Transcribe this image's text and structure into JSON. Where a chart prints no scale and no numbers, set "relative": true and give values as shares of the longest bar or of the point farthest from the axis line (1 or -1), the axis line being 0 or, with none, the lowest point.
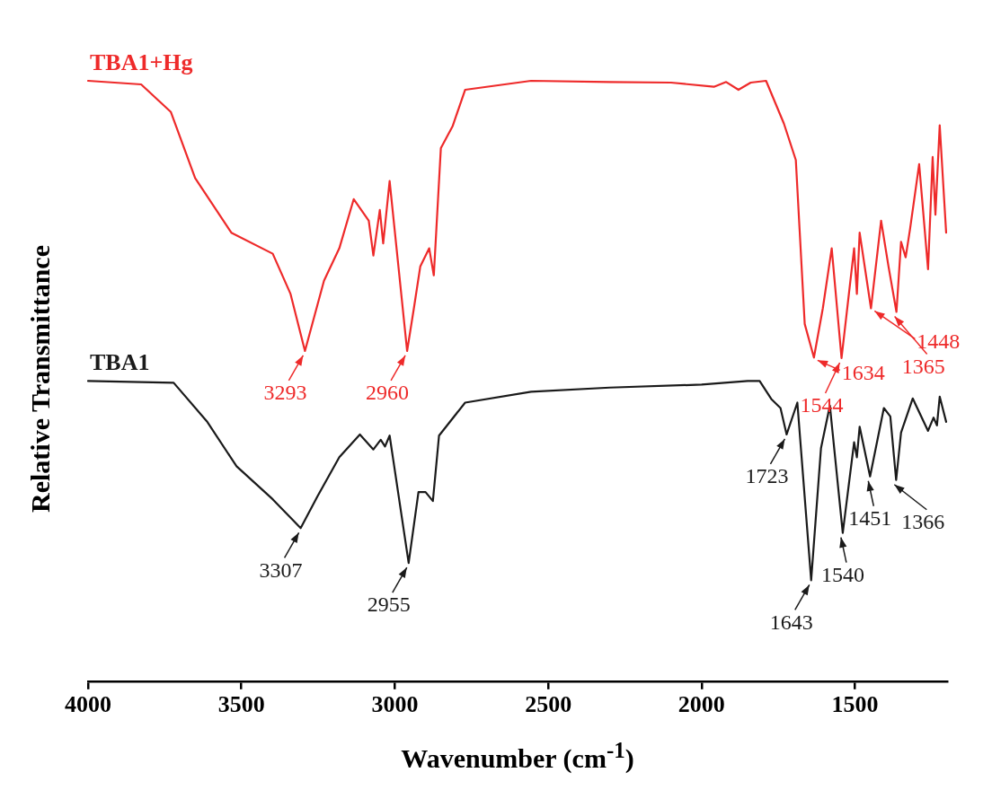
{
  "chart_data": {
    "type": "line",
    "relative": true,
    "xlabel": "Wavenumber (cm$^{-1}$)",
    "ylabel": "Relative Transmittance",
    "xlim": [
      4000,
      1200
    ],
    "xticks": [
      4000,
      3500,
      3000,
      2500,
      2000,
      1500
    ],
    "grid": false,
    "legend": false,
    "marker": "none",
    "line_style": "solid",
    "series": [
      {
        "name": "TBA1+Hg",
        "color": "#ee2a2a",
        "x": [
          4000,
          3827,
          3730,
          3651,
          3533,
          3398,
          3340,
          3293,
          3231,
          3181,
          3134,
          3085,
          3070,
          3049,
          3038,
          3017,
          2960,
          2938,
          2917,
          2888,
          2873,
          2850,
          2812,
          2771,
          2556,
          2300,
          2100,
          1960,
          1920,
          1880,
          1840,
          1790,
          1732,
          1693,
          1664,
          1634,
          1605,
          1576,
          1544,
          1503,
          1494,
          1485,
          1448,
          1415,
          1391,
          1365,
          1350,
          1335,
          1321,
          1291,
          1262,
          1247,
          1238,
          1224,
          1203
        ],
        "values": [
          1.0,
          0.994,
          0.948,
          0.838,
          0.747,
          0.712,
          0.645,
          0.55,
          0.667,
          0.721,
          0.803,
          0.767,
          0.709,
          0.785,
          0.729,
          0.833,
          0.55,
          0.621,
          0.691,
          0.721,
          0.676,
          0.888,
          0.924,
          0.985,
          1.0,
          0.998,
          0.997,
          0.99,
          0.998,
          0.985,
          0.997,
          1.0,
          0.929,
          0.868,
          0.595,
          0.539,
          0.621,
          0.721,
          0.538,
          0.721,
          0.645,
          0.747,
          0.621,
          0.767,
          0.691,
          0.615,
          0.732,
          0.706,
          0.752,
          0.861,
          0.686,
          0.873,
          0.777,
          0.926,
          0.747
        ]
      },
      {
        "name": "TBA1",
        "color": "#1a1a1a",
        "x": [
          4000,
          3721,
          3613,
          3516,
          3398,
          3307,
          3252,
          3181,
          3114,
          3070,
          3046,
          3032,
          3017,
          2955,
          2923,
          2900,
          2876,
          2856,
          2771,
          2556,
          2300,
          2000,
          1850,
          1811,
          1773,
          1743,
          1723,
          1688,
          1643,
          1611,
          1582,
          1540,
          1503,
          1494,
          1485,
          1451,
          1406,
          1385,
          1366,
          1350,
          1312,
          1262,
          1244,
          1233,
          1224,
          1203
        ],
        "values": [
          0.5,
          0.497,
          0.433,
          0.358,
          0.303,
          0.255,
          0.308,
          0.373,
          0.411,
          0.386,
          0.402,
          0.391,
          0.409,
          0.197,
          0.315,
          0.315,
          0.3,
          0.409,
          0.464,
          0.482,
          0.489,
          0.494,
          0.5,
          0.5,
          0.47,
          0.455,
          0.411,
          0.464,
          0.168,
          0.388,
          0.459,
          0.247,
          0.398,
          0.373,
          0.424,
          0.341,
          0.455,
          0.441,
          0.335,
          0.414,
          0.471,
          0.417,
          0.439,
          0.426,
          0.474,
          0.432
        ]
      }
    ],
    "annotations": [
      {
        "text": "3293",
        "x": 3293,
        "y": 0.55
      },
      {
        "text": "2960",
        "x": 2960,
        "y": 0.55
      },
      {
        "text": "1634",
        "x": 1634,
        "y": 0.539
      },
      {
        "text": "1544",
        "x": 1544,
        "y": 0.538
      },
      {
        "text": "1448",
        "x": 1448,
        "y": 0.621
      },
      {
        "text": "1365",
        "x": 1365,
        "y": 0.615
      },
      {
        "text": "3307",
        "x": 3307,
        "y": 0.255
      },
      {
        "text": "2955",
        "x": 2955,
        "y": 0.197
      },
      {
        "text": "1723",
        "x": 1723,
        "y": 0.411
      },
      {
        "text": "1643",
        "x": 1643,
        "y": 0.168
      },
      {
        "text": "1540",
        "x": 1540,
        "y": 0.247
      },
      {
        "text": "1451",
        "x": 1451,
        "y": 0.341
      },
      {
        "text": "1366",
        "x": 1366,
        "y": 0.335
      }
    ]
  }
}
